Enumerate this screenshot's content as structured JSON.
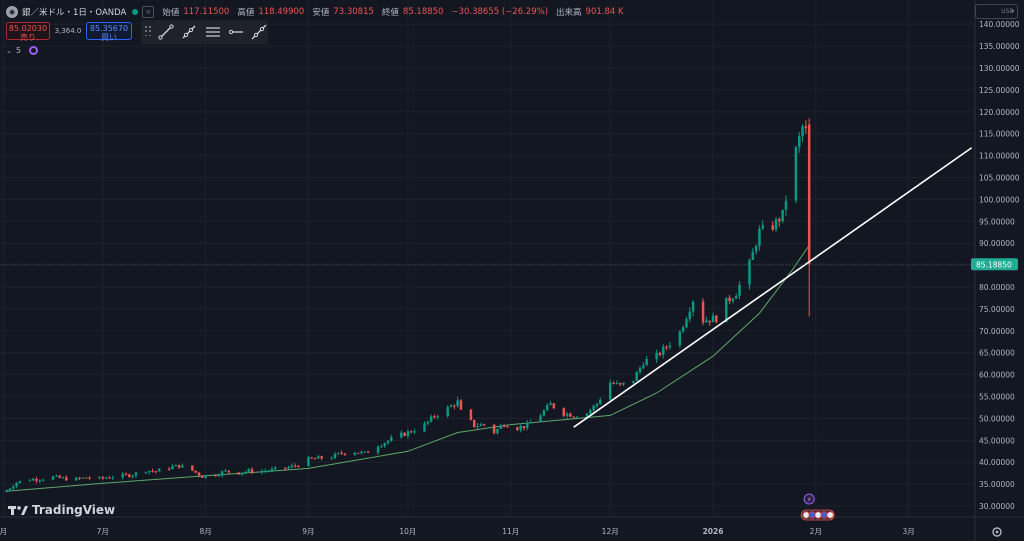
{
  "legend": {
    "symbol": "銀／米ドル・1日・OANDA",
    "close_label": "×",
    "open_label": "始値",
    "open_value": "117.11500",
    "high_label": "高値",
    "high_value": "118.49900",
    "low_label": "安値",
    "low_value": "73.30815",
    "close_value_label": "終値",
    "close_value": "85.18850",
    "change": "−30.38655 (−26.29%)",
    "volume_label": "出来高",
    "volume_value": "901.84 K"
  },
  "trade": {
    "sell_price": "85.02030",
    "sell_label": "売り",
    "spread": "3,364.0",
    "buy_price": "85.35670",
    "buy_label": "買い"
  },
  "indicator": {
    "label": "5"
  },
  "currency": "USD",
  "brand": "TradingView",
  "icons": {
    "symbol": "silver-coin-icon",
    "eye": "indicator-visibility-icon",
    "tools": [
      "trend-line-icon",
      "ray-icon",
      "parallel-channel-icon",
      "horizontal-ray-icon",
      "extended-line-icon"
    ],
    "settings": "settings-gear-icon",
    "events": [
      "lightning-icon",
      "us-flag-icon"
    ]
  },
  "colors": {
    "background": "#131722",
    "up": "#089981",
    "down": "#ef5350",
    "ma": "#5fa86a",
    "trendline": "#ffffff",
    "price_tag": "#22ab94"
  },
  "chart_data": {
    "type": "candlestick",
    "symbol": "XAG/USD",
    "timeframe": "1D",
    "y_ticks": [
      30,
      35,
      40,
      45,
      50,
      55,
      60,
      65,
      70,
      75,
      80,
      85,
      90,
      95,
      100,
      105,
      110,
      115,
      120,
      125,
      130,
      135,
      140
    ],
    "y_tick_labels": [
      "30.00000",
      "35.00000",
      "40.00000",
      "45.00000",
      "50.00000",
      "55.00000",
      "60.00000",
      "65.00000",
      "70.00000",
      "75.00000",
      "80.00000",
      "85.00000",
      "90.00000",
      "95.00000",
      "100.00000",
      "105.00000",
      "110.00000",
      "115.00000",
      "120.00000",
      "125.00000",
      "130.00000",
      "135.00000",
      "140.00000"
    ],
    "x_tick_labels": [
      "月",
      "7月",
      "8月",
      "9月",
      "10月",
      "11月",
      "12月",
      "2026",
      "2月",
      "3月"
    ],
    "x_tick_dates": [
      "2025-06-01",
      "2025-07-01",
      "2025-08-01",
      "2025-09-01",
      "2025-10-01",
      "2025-11-01",
      "2025-12-01",
      "2026-01-01",
      "2026-02-01",
      "2026-03-01"
    ],
    "x_range": [
      "2025-05-31",
      "2026-03-21"
    ],
    "y_range": [
      27.5,
      140.5
    ],
    "last_price": 85.1885,
    "last_price_label": "85.18850",
    "last_candle": {
      "date": "2026-01-30",
      "open": 117.115,
      "high": 118.499,
      "low": 73.30815,
      "close": 85.1885
    },
    "close_series": [
      [
        "2025-06-02",
        33.6
      ],
      [
        "2025-06-05",
        35.4
      ],
      [
        "2025-06-09",
        36.1
      ],
      [
        "2025-06-12",
        36.2
      ],
      [
        "2025-06-16",
        36.6
      ],
      [
        "2025-06-19",
        36.3
      ],
      [
        "2025-06-23",
        36.1
      ],
      [
        "2025-06-26",
        36.5
      ],
      [
        "2025-06-30",
        36.2
      ],
      [
        "2025-07-03",
        36.7
      ],
      [
        "2025-07-07",
        36.9
      ],
      [
        "2025-07-10",
        37.2
      ],
      [
        "2025-07-14",
        38.2
      ],
      [
        "2025-07-17",
        37.9
      ],
      [
        "2025-07-21",
        38.8
      ],
      [
        "2025-07-24",
        39.2
      ],
      [
        "2025-07-28",
        38.1
      ],
      [
        "2025-07-31",
        36.8
      ],
      [
        "2025-08-04",
        37.3
      ],
      [
        "2025-08-07",
        37.9
      ],
      [
        "2025-08-11",
        37.6
      ],
      [
        "2025-08-14",
        38.0
      ],
      [
        "2025-08-18",
        38.0
      ],
      [
        "2025-08-21",
        38.2
      ],
      [
        "2025-08-25",
        38.6
      ],
      [
        "2025-08-28",
        39.2
      ],
      [
        "2025-09-01",
        40.6
      ],
      [
        "2025-09-04",
        40.9
      ],
      [
        "2025-09-08",
        41.2
      ],
      [
        "2025-09-11",
        42.1
      ],
      [
        "2025-09-15",
        42.4
      ],
      [
        "2025-09-18",
        42.0
      ],
      [
        "2025-09-22",
        43.9
      ],
      [
        "2025-09-25",
        44.9
      ],
      [
        "2025-09-29",
        46.2
      ],
      [
        "2025-10-02",
        47.1
      ],
      [
        "2025-10-06",
        48.5
      ],
      [
        "2025-10-09",
        50.6
      ],
      [
        "2025-10-13",
        52.3
      ],
      [
        "2025-10-16",
        53.8
      ],
      [
        "2025-10-17",
        51.5
      ],
      [
        "2025-10-21",
        48.4
      ],
      [
        "2025-10-24",
        48.6
      ],
      [
        "2025-10-27",
        46.9
      ],
      [
        "2025-10-30",
        48.8
      ],
      [
        "2025-11-03",
        47.9
      ],
      [
        "2025-11-06",
        48.4
      ],
      [
        "2025-11-10",
        50.9
      ],
      [
        "2025-11-13",
        53.2
      ],
      [
        "2025-11-17",
        51.2
      ],
      [
        "2025-11-20",
        50.8
      ],
      [
        "2025-11-24",
        51.2
      ],
      [
        "2025-11-27",
        53.4
      ],
      [
        "2025-12-01",
        58.2
      ],
      [
        "2025-12-04",
        57.4
      ],
      [
        "2025-12-08",
        58.9
      ],
      [
        "2025-12-11",
        62.9
      ],
      [
        "2025-12-15",
        64.2
      ],
      [
        "2025-12-18",
        66.4
      ],
      [
        "2025-12-22",
        69.7
      ],
      [
        "2025-12-26",
        77.2
      ],
      [
        "2025-12-29",
        72.4
      ],
      [
        "2026-01-02",
        72.9
      ],
      [
        "2026-01-05",
        76.6
      ],
      [
        "2026-01-08",
        78.8
      ],
      [
        "2026-01-12",
        85.2
      ],
      [
        "2026-01-15",
        92.7
      ],
      [
        "2026-01-19",
        93.9
      ],
      [
        "2026-01-22",
        96.5
      ],
      [
        "2026-01-26",
        111.2
      ],
      [
        "2026-01-28",
        116.5
      ],
      [
        "2026-01-29",
        115.5
      ],
      [
        "2026-01-30",
        85.19
      ]
    ],
    "ma_series": [
      [
        "2025-06-02",
        33.4
      ],
      [
        "2025-07-01",
        35.2
      ],
      [
        "2025-08-01",
        36.9
      ],
      [
        "2025-09-01",
        38.6
      ],
      [
        "2025-10-01",
        42.5
      ],
      [
        "2025-10-16",
        46.8
      ],
      [
        "2025-11-01",
        48.6
      ],
      [
        "2025-12-01",
        50.7
      ],
      [
        "2025-12-15",
        55.8
      ],
      [
        "2026-01-01",
        64.2
      ],
      [
        "2026-01-15",
        74.0
      ],
      [
        "2026-01-25",
        84.0
      ],
      [
        "2026-01-30",
        89.5
      ]
    ],
    "trendline": {
      "start": [
        "2025-11-20",
        48.0
      ],
      "end": [
        "2026-03-20",
        111.8
      ]
    }
  }
}
